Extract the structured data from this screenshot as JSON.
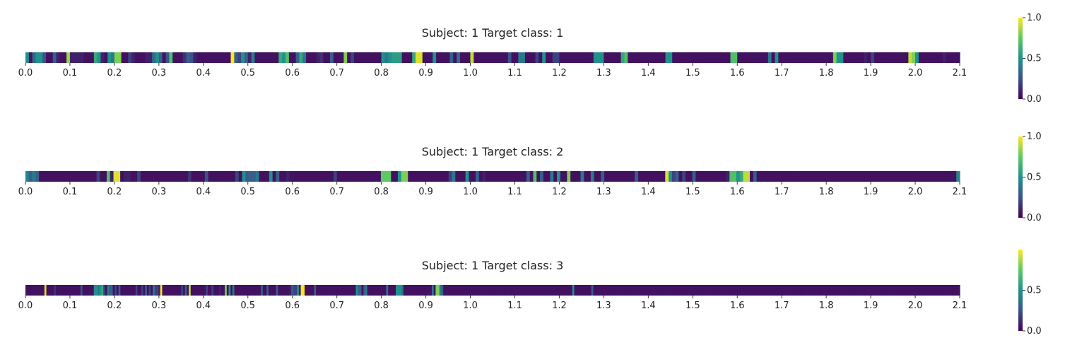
{
  "chart_data": [
    {
      "type": "heatmap",
      "title": "Subject: 1 Target class: 1",
      "xlim": [
        0.0,
        2.1
      ],
      "xticks": [
        "0.0",
        "0.1",
        "0.2",
        "0.3",
        "0.4",
        "0.5",
        "0.6",
        "0.7",
        "0.8",
        "0.9",
        "1.0",
        "1.1",
        "1.2",
        "1.3",
        "1.4",
        "1.5",
        "1.6",
        "1.7",
        "1.8",
        "1.9",
        "2.0",
        "2.1"
      ],
      "colormap": "viridis",
      "colorbar": {
        "range": [
          0.0,
          1.0
        ],
        "ticks": [
          "1.0",
          "0.5",
          "0.0"
        ],
        "tick_values": [
          1.0,
          0.5,
          0.0
        ]
      },
      "values": [
        0.5,
        0.05,
        0.35,
        0.5,
        0.5,
        0.25,
        0.05,
        0.05,
        0.3,
        0.1,
        0.05,
        0.05,
        0.85,
        0.1,
        0.1,
        0.1,
        0.1,
        0.05,
        0.05,
        0.05,
        0.6,
        0.5,
        0.1,
        0.05,
        0.5,
        0.4,
        0.8,
        0.8,
        0.05,
        0.05,
        0.2,
        0.1,
        0.05,
        0.05,
        0.05,
        0.1,
        0.1,
        0.35,
        0.5,
        0.3,
        0.05,
        0.25,
        0.7,
        0.05,
        0.05,
        0.05,
        0.15,
        0.3,
        0.25,
        0.1,
        0.05,
        0.05,
        0.05,
        0.05,
        0.05,
        0.05,
        0.05,
        0.05,
        0.05,
        0.05,
        1.0,
        0.3,
        0.2,
        0.5,
        0.3,
        0.1,
        0.4,
        0.05,
        0.05,
        0.05,
        0.05,
        0.05,
        0.05,
        0.05,
        0.6,
        0.5,
        0.7,
        0.05,
        0.05,
        0.3,
        0.6,
        0.4,
        0.05,
        0.05,
        0.05,
        0.1,
        0.15,
        0.05,
        0.05,
        0.3,
        0.05,
        0.05,
        0.05,
        0.8,
        0.05,
        0.2,
        0.05,
        0.05,
        0.05,
        0.05,
        0.05,
        0.05,
        0.05,
        0.05,
        0.5,
        0.4,
        0.5,
        0.55,
        0.55,
        0.55,
        0.05,
        0.05,
        0.05,
        0.6,
        0.95,
        0.95,
        0.05,
        0.05,
        0.05,
        0.5,
        0.05,
        0.05,
        0.05,
        0.05,
        0.3,
        0.05,
        0.35,
        0.05,
        0.05,
        0.05,
        0.9,
        0.05,
        0.05,
        0.05,
        0.05,
        0.05,
        0.05,
        0.05,
        0.05,
        0.05,
        0.05,
        0.25,
        0.05,
        0.05,
        0.4,
        0.4,
        0.05,
        0.05,
        0.05,
        0.2,
        0.05,
        0.5,
        0.05,
        0.05,
        0.2,
        0.2,
        0.05,
        0.05,
        0.05,
        0.05,
        0.05,
        0.05,
        0.05,
        0.05,
        0.05,
        0.05,
        0.5,
        0.5,
        0.5,
        0.05,
        0.05,
        0.05,
        0.05,
        0.05,
        0.6,
        0.7,
        0.05,
        0.05,
        0.05,
        0.05,
        0.05,
        0.05,
        0.05,
        0.05,
        0.05,
        0.05,
        0.05,
        0.5,
        0.5,
        0.05,
        0.05,
        0.05,
        0.05,
        0.05,
        0.05,
        0.05,
        0.05,
        0.05,
        0.05,
        0.05,
        0.05,
        0.05,
        0.05,
        0.05,
        0.05,
        0.05,
        0.7,
        0.7,
        0.05,
        0.05,
        0.05,
        0.05,
        0.05,
        0.05,
        0.05,
        0.05,
        0.05,
        0.4,
        0.05,
        0.5,
        0.05,
        0.05,
        0.05,
        0.05,
        0.05,
        0.05,
        0.05,
        0.05,
        0.05,
        0.05,
        0.05,
        0.05,
        0.05,
        0.05,
        0.05,
        0.05,
        0.8,
        0.5,
        0.5,
        0.05,
        0.05,
        0.05,
        0.05,
        0.05,
        0.05,
        0.1,
        0.05,
        0.2,
        0.05,
        0.05,
        0.05,
        0.05,
        0.05,
        0.05,
        0.05,
        0.05,
        0.05,
        0.05,
        0.9,
        0.8,
        0.5,
        0.05,
        0.05,
        0.05,
        0.05,
        0.05,
        0.05,
        0.05,
        0.1,
        0.05,
        0.05,
        0.05,
        0.05
      ]
    },
    {
      "type": "heatmap",
      "title": "Subject: 1 Target class: 2",
      "xlim": [
        0.0,
        2.1
      ],
      "xticks": [
        "0.0",
        "0.1",
        "0.2",
        "0.3",
        "0.4",
        "0.5",
        "0.6",
        "0.7",
        "0.8",
        "0.9",
        "1.0",
        "1.1",
        "1.2",
        "1.3",
        "1.4",
        "1.5",
        "1.6",
        "1.7",
        "1.8",
        "1.9",
        "2.0",
        "2.1"
      ],
      "colormap": "viridis",
      "colorbar": {
        "range": [
          0.0,
          1.0
        ],
        "ticks": [
          "1.0",
          "0.5",
          "0.0"
        ],
        "tick_values": [
          1.0,
          0.5,
          0.0
        ]
      },
      "values": [
        0.45,
        0.3,
        0.4,
        0.3,
        0.05,
        0.05,
        0.05,
        0.05,
        0.05,
        0.05,
        0.05,
        0.05,
        0.05,
        0.05,
        0.05,
        0.05,
        0.05,
        0.05,
        0.05,
        0.05,
        0.05,
        0.2,
        0.05,
        0.05,
        0.7,
        0.1,
        0.95,
        0.95,
        0.05,
        0.1,
        0.1,
        0.05,
        0.05,
        0.2,
        0.05,
        0.05,
        0.05,
        0.05,
        0.05,
        0.05,
        0.05,
        0.05,
        0.05,
        0.05,
        0.05,
        0.05,
        0.05,
        0.05,
        0.15,
        0.05,
        0.05,
        0.05,
        0.05,
        0.25,
        0.05,
        0.05,
        0.05,
        0.05,
        0.05,
        0.05,
        0.05,
        0.05,
        0.2,
        0.05,
        0.5,
        0.3,
        0.3,
        0.3,
        0.4,
        0.05,
        0.05,
        0.05,
        0.5,
        0.05,
        0.3,
        0.05,
        0.05,
        0.1,
        0.05,
        0.05,
        0.05,
        0.05,
        0.05,
        0.05,
        0.05,
        0.05,
        0.05,
        0.05,
        0.05,
        0.05,
        0.05,
        0.2,
        0.05,
        0.05,
        0.05,
        0.05,
        0.05,
        0.05,
        0.05,
        0.05,
        0.05,
        0.05,
        0.05,
        0.05,
        0.05,
        0.75,
        0.75,
        0.75,
        0.05,
        0.05,
        0.5,
        0.8,
        0.8,
        0.05,
        0.05,
        0.05,
        0.05,
        0.05,
        0.05,
        0.05,
        0.05,
        0.05,
        0.05,
        0.05,
        0.05,
        0.2,
        0.4,
        0.05,
        0.05,
        0.05,
        0.5,
        0.05,
        0.05,
        0.3,
        0.05,
        0.1,
        0.05,
        0.05,
        0.05,
        0.05,
        0.05,
        0.05,
        0.05,
        0.05,
        0.05,
        0.05,
        0.05,
        0.05,
        0.3,
        0.05,
        0.7,
        0.05,
        0.3,
        0.05,
        0.05,
        0.4,
        0.05,
        0.5,
        0.05,
        0.05,
        0.8,
        0.05,
        0.05,
        0.05,
        0.4,
        0.05,
        0.05,
        0.4,
        0.05,
        0.05,
        0.3,
        0.05,
        0.05,
        0.05,
        0.05,
        0.05,
        0.05,
        0.05,
        0.05,
        0.05,
        0.3,
        0.05,
        0.05,
        0.05,
        0.05,
        0.05,
        0.05,
        0.05,
        0.05,
        0.95,
        0.5,
        0.2,
        0.3,
        0.05,
        0.2,
        0.05,
        0.05,
        0.3,
        0.05,
        0.05,
        0.05,
        0.05,
        0.05,
        0.05,
        0.05,
        0.05,
        0.05,
        0.1,
        0.7,
        0.7,
        0.5,
        0.6,
        0.9,
        0.9,
        0.05,
        0.3,
        0.05,
        0.05,
        0.05,
        0.05,
        0.05,
        0.05,
        0.05,
        0.05,
        0.05,
        0.05,
        0.05,
        0.05,
        0.05,
        0.05,
        0.05,
        0.05,
        0.05,
        0.05,
        0.05,
        0.05,
        0.05,
        0.05,
        0.05,
        0.05,
        0.05,
        0.05,
        0.05,
        0.05,
        0.05,
        0.05,
        0.05,
        0.05,
        0.05,
        0.05,
        0.05,
        0.05,
        0.05,
        0.05,
        0.05,
        0.05,
        0.05,
        0.05,
        0.05,
        0.05,
        0.05,
        0.05,
        0.05,
        0.05,
        0.05,
        0.05,
        0.05,
        0.05,
        0.05,
        0.05,
        0.05,
        0.05,
        0.05,
        0.05,
        0.05,
        0.45
      ]
    },
    {
      "type": "heatmap",
      "title": "Subject: 1 Target class: 3",
      "xlim": [
        0.0,
        2.1
      ],
      "xticks": [
        "0.0",
        "0.1",
        "0.2",
        "0.3",
        "0.4",
        "0.5",
        "0.6",
        "0.7",
        "0.8",
        "0.9",
        "1.0",
        "1.1",
        "1.2",
        "1.3",
        "1.4",
        "1.5",
        "1.6",
        "1.7",
        "1.8",
        "1.9",
        "2.0",
        "2.1"
      ],
      "colormap": "viridis",
      "colorbar": {
        "range": [
          0.0,
          1.0
        ],
        "ticks": [
          "0.5",
          "0.0"
        ],
        "tick_values": [
          0.5,
          0.0
        ]
      },
      "values": [
        0.05,
        0.05,
        0.05,
        0.05,
        0.05,
        0.05,
        0.05,
        0.05,
        0.05,
        0.05,
        0.95,
        0.05,
        0.05,
        0.05,
        0.05,
        0.15,
        0.05,
        0.05,
        0.05,
        0.05,
        0.05,
        0.05,
        0.05,
        0.05,
        0.05,
        0.05,
        0.05,
        0.05,
        0.05,
        0.25,
        0.05,
        0.05,
        0.05,
        0.05,
        0.05,
        0.05,
        0.5,
        0.5,
        0.4,
        0.5,
        0.6,
        0.2,
        0.05,
        0.4,
        0.3,
        0.3,
        0.05,
        0.2,
        0.05,
        0.3,
        0.05,
        0.05,
        0.05,
        0.05,
        0.05,
        0.05,
        0.05,
        0.05,
        0.2,
        0.05,
        0.05,
        0.2,
        0.05,
        0.3,
        0.05,
        0.2,
        0.05,
        0.4,
        0.2,
        0.2,
        0.1,
        1.0,
        0.05,
        0.05,
        0.05,
        0.05,
        0.05,
        0.05,
        0.05,
        0.05,
        0.05,
        0.05,
        0.2,
        0.05,
        0.3,
        0.05,
        0.9,
        0.05,
        0.05,
        0.05,
        0.05,
        0.05,
        0.05,
        0.05,
        0.05,
        0.2,
        0.05,
        0.05,
        0.2,
        0.05,
        0.05,
        0.05,
        0.1,
        0.05,
        0.05,
        0.8,
        0.05,
        0.5,
        0.05,
        0.4,
        0.05,
        0.05,
        0.05,
        0.05,
        0.05,
        0.05,
        0.05,
        0.05,
        0.05,
        0.05,
        0.05,
        0.05,
        0.05,
        0.05,
        0.3,
        0.05,
        0.05,
        0.3,
        0.05,
        0.05,
        0.05,
        0.05,
        0.3,
        0.05,
        0.05,
        0.05,
        0.05,
        0.05,
        0.05,
        0.1,
        0.3,
        0.2,
        0.2,
        0.5,
        0.1,
        1.0,
        1.0,
        0.05,
        0.05,
        0.05,
        0.05,
        0.05,
        0.3,
        0.05,
        0.05,
        0.05,
        0.05,
        0.05,
        0.05,
        0.05,
        0.05,
        0.05,
        0.05,
        0.05,
        0.05,
        0.05,
        0.05,
        0.05,
        0.05,
        0.05,
        0.05,
        0.05,
        0.05,
        0.05,
        0.5,
        0.3,
        0.3,
        0.05,
        0.3,
        0.4,
        0.05,
        0.05,
        0.05,
        0.05,
        0.05,
        0.05,
        0.05,
        0.05,
        0.05,
        0.05,
        0.4,
        0.05,
        0.05,
        0.05,
        0.05,
        0.5,
        0.5,
        0.5,
        0.4,
        0.05,
        0.05,
        0.05,
        0.05,
        0.05,
        0.05,
        0.05,
        0.05,
        0.05,
        0.05,
        0.05,
        0.05,
        0.05,
        0.05,
        0.05,
        0.4,
        0.05,
        0.8,
        0.8,
        0.4,
        0.3,
        0.05,
        0.05,
        0.05,
        0.05,
        0.05,
        0.05,
        0.05,
        0.05,
        0.05,
        0.05,
        0.05,
        0.05,
        0.05,
        0.05,
        0.05,
        0.05,
        0.05,
        0.05,
        0.05,
        0.05,
        0.05,
        0.05,
        0.05,
        0.05,
        0.05,
        0.05,
        0.05,
        0.05,
        0.05,
        0.05,
        0.05,
        0.05,
        0.05,
        0.05,
        0.05,
        0.05,
        0.05,
        0.05,
        0.05,
        0.05,
        0.05,
        0.05,
        0.05,
        0.05,
        0.05,
        0.05,
        0.05,
        0.05,
        0.05,
        0.05,
        0.05,
        0.05,
        0.05,
        0.05,
        0.05,
        0.05,
        0.05,
        0.05,
        0.05,
        0.05,
        0.05,
        0.05,
        0.05,
        0.05,
        0.05,
        0.05,
        0.05,
        0.05,
        0.5,
        0.05,
        0.05,
        0.05,
        0.05,
        0.05,
        0.05,
        0.05,
        0.05,
        0.05,
        0.3,
        0.05,
        0.05,
        0.05,
        0.05,
        0.05,
        0.05,
        0.05,
        0.05,
        0.05,
        0.05,
        0.05,
        0.05,
        0.05,
        0.05,
        0.05,
        0.05,
        0.05,
        0.05,
        0.05,
        0.05,
        0.05,
        0.05,
        0.05,
        0.05,
        0.05,
        0.05,
        0.05,
        0.05,
        0.05,
        0.05,
        0.05,
        0.05,
        0.05,
        0.05,
        0.05,
        0.05,
        0.05,
        0.05,
        0.05,
        0.05,
        0.05,
        0.05,
        0.05,
        0.05,
        0.05,
        0.05,
        0.05,
        0.05,
        0.05,
        0.05,
        0.05,
        0.05,
        0.05,
        0.05,
        0.05,
        0.05,
        0.05,
        0.05,
        0.05,
        0.05,
        0.05,
        0.05,
        0.05,
        0.05,
        0.05,
        0.05,
        0.05,
        0.05,
        0.05,
        0.05,
        0.05,
        0.05,
        0.05,
        0.05,
        0.05,
        0.05,
        0.05,
        0.05,
        0.05,
        0.05,
        0.05,
        0.05,
        0.05,
        0.05,
        0.05,
        0.05,
        0.05,
        0.05,
        0.05,
        0.05,
        0.05,
        0.05,
        0.05,
        0.05,
        0.05,
        0.05,
        0.05,
        0.05,
        0.05,
        0.05,
        0.05,
        0.05,
        0.05,
        0.05,
        0.05,
        0.05,
        0.05,
        0.05,
        0.05,
        0.05,
        0.05,
        0.05,
        0.05,
        0.05,
        0.05,
        0.05,
        0.05,
        0.05,
        0.05,
        0.05,
        0.05,
        0.05,
        0.05,
        0.05,
        0.05,
        0.05,
        0.05,
        0.05,
        0.05,
        0.05,
        0.05,
        0.05,
        0.05,
        0.05,
        0.05,
        0.05,
        0.05,
        0.05,
        0.05,
        0.05,
        0.05,
        0.05,
        0.05,
        0.05,
        0.05,
        0.05,
        0.05,
        0.05,
        0.05,
        0.05,
        0.05,
        0.05,
        0.05,
        0.05,
        0.05,
        0.05,
        0.05,
        0.05,
        0.05,
        0.05,
        0.05,
        0.05,
        0.05,
        0.05,
        0.05,
        0.05,
        0.05,
        0.05,
        0.05,
        0.05,
        0.05,
        0.05,
        0.05,
        0.05,
        0.05,
        0.05,
        0.05,
        0.05,
        0.05,
        0.05,
        0.05,
        0.05,
        0.05,
        0.05,
        0.05,
        0.05,
        0.05,
        0.05,
        0.05,
        0.05,
        0.05,
        0.05,
        0.05
      ]
    }
  ]
}
